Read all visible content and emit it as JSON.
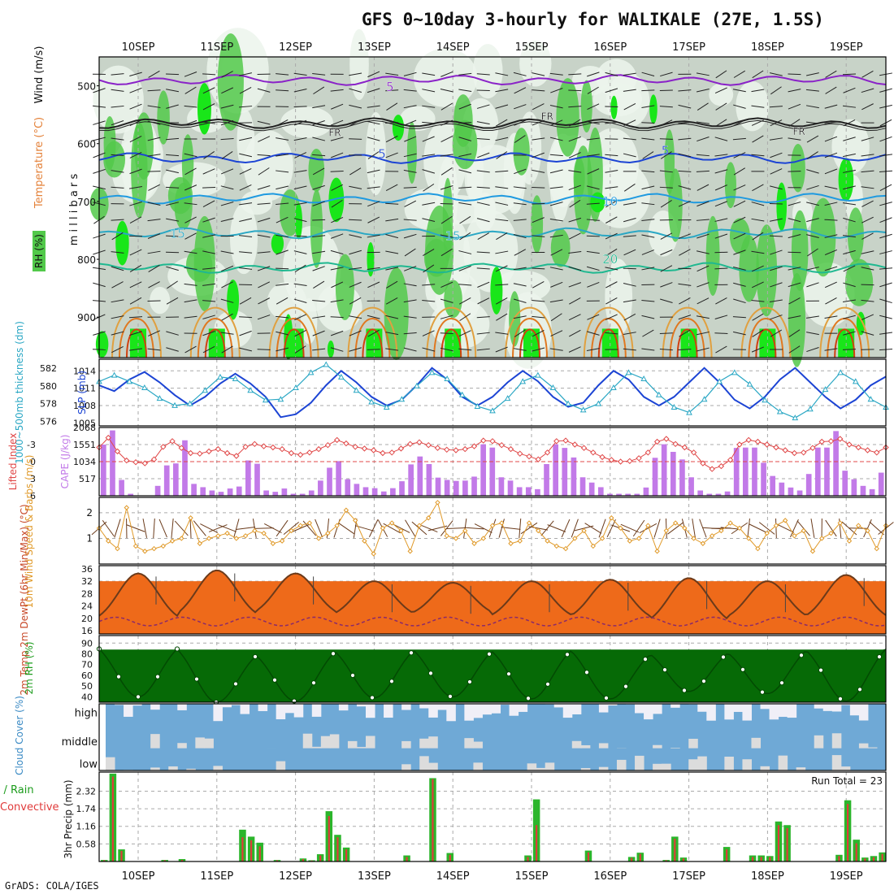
{
  "title": "GFS 0~10day 3-hourly for WALIKALE (27E, 1.5S)",
  "credit": "GrADS: COLA/IGES",
  "colors": {
    "frame": "#000000",
    "grid": "#999999",
    "purple": "#8a22c8",
    "blue": "#1c44d4",
    "cyan": "#2aa7c4",
    "rh_light": "#b9e8b0",
    "rh_mid": "#52c94a",
    "rh_bright": "#19e619",
    "cape": "#c27ae8",
    "li": "#e04848",
    "wind10": "#e09a2a",
    "cloud": "#6fa9d6",
    "precip_total": "#2bb52b",
    "precip_conv": "#e03a3a"
  },
  "chart_data": [
    {
      "type": "line",
      "panel": "upper-air",
      "title": "Wind (m/s) Temperature (°C) RH (%)",
      "ylabel": "millibars",
      "legend": [
        "Wind (m/s)",
        "Temperature (°C)",
        "RH (%)"
      ],
      "axis_label_wind": "Wind (m/s)",
      "axis_label_temp": "Temperature (°C)",
      "axis_label_rh": "RH (%)",
      "ylim": [
        450,
        970
      ],
      "ytick_labels": [
        "500",
        "600",
        "700",
        "800",
        "900"
      ],
      "yticks": [
        500,
        600,
        700,
        800,
        900
      ],
      "x_dates": [
        "10SEP",
        "11SEP",
        "12SEP",
        "13SEP",
        "14SEP",
        "15SEP",
        "16SEP",
        "17SEP",
        "18SEP",
        "19SEP"
      ],
      "contour_labels": [
        {
          "text": "5",
          "day": 3.2,
          "p": 502
        },
        {
          "text": "FR",
          "day": 2.5,
          "p": 580
        },
        {
          "text": "FR",
          "day": 5.2,
          "p": 552
        },
        {
          "text": "FR",
          "day": 8.4,
          "p": 578
        },
        {
          "text": "5",
          "day": 3.1,
          "p": 618
        },
        {
          "text": "5",
          "day": 6.7,
          "p": 612
        },
        {
          "text": "10",
          "day": 6.0,
          "p": 700
        },
        {
          "text": "15",
          "day": 0.5,
          "p": 756
        },
        {
          "text": "15",
          "day": 4.0,
          "p": 760
        },
        {
          "text": "20",
          "day": 6.0,
          "p": 800
        }
      ],
      "series": [
        {
          "name": "-5 °C",
          "level_mb": 490
        },
        {
          "name": "0 °C (FR)",
          "level_mb": 565
        },
        {
          "name": "5 °C",
          "level_mb": 625
        },
        {
          "name": "10 °C",
          "level_mb": 695
        },
        {
          "name": "15 °C",
          "level_mb": 755
        },
        {
          "name": "20 °C",
          "level_mb": 815
        }
      ]
    },
    {
      "type": "line",
      "panel": "thickness-slp",
      "ylabel_left": "1000~500mb thickness (dm)",
      "ylabel_right": "SLP (mb)",
      "left_ticks": [
        "582",
        "580",
        "578",
        "576"
      ],
      "left_range": [
        575.5,
        583
      ],
      "right_ticks": [
        "1014",
        "1011",
        "1008",
        "1005"
      ],
      "right_range": [
        1004.5,
        1016
      ],
      "series": [
        {
          "name": "SLP (mb)",
          "values": [
            1011.5,
            1010.5,
            1012.5,
            1013.8,
            1012.0,
            1009.8,
            1008.0,
            1009.5,
            1011.8,
            1013.5,
            1011.8,
            1009.5,
            1006.0,
            1006.5,
            1008.5,
            1011.5,
            1014.0,
            1012.0,
            1009.5,
            1008.0,
            1009.0,
            1011.5,
            1014.5,
            1012.5,
            1009.5,
            1008.0,
            1009.5,
            1012.0,
            1014.0,
            1012.2,
            1009.5,
            1007.8,
            1008.5,
            1011.5,
            1014.0,
            1012.5,
            1009.5,
            1008.0,
            1009.5,
            1012.0,
            1014.5,
            1012.0,
            1009.0,
            1007.5,
            1009.5,
            1012.5,
            1014.5,
            1012.0,
            1009.5,
            1007.5,
            1009.0,
            1011.5,
            1013.0
          ]
        },
        {
          "name": "1000~500mb thickness (dm)",
          "values": [
            580.5,
            581.2,
            580.5,
            579.8,
            578.6,
            577.8,
            578.0,
            579.5,
            581.0,
            580.8,
            579.5,
            578.4,
            578.5,
            579.8,
            581.5,
            582.4,
            581.0,
            579.5,
            578.2,
            577.6,
            578.5,
            580.0,
            581.5,
            580.8,
            579.0,
            577.7,
            577.2,
            578.6,
            580.5,
            581.2,
            579.8,
            578.0,
            577.3,
            578.0,
            579.8,
            581.5,
            580.8,
            579.0,
            577.6,
            577.0,
            578.5,
            580.5,
            581.5,
            580.2,
            578.4,
            577.1,
            576.4,
            577.4,
            579.6,
            581.5,
            580.5,
            578.5,
            577.6
          ]
        }
      ]
    },
    {
      "type": "bar",
      "panel": "cape-li",
      "ylabel_left": "Lifted Index",
      "ylabel_right": "CAPE (J/kg)",
      "li_ticks": [
        "-3",
        "0",
        "3",
        "6"
      ],
      "li_range": [
        -6,
        6
      ],
      "cape_ticks": [
        "2068",
        "1551",
        "1034",
        "517"
      ],
      "cape_range": [
        0,
        2068
      ],
      "series": [
        {
          "name": "CAPE (J/kg)",
          "values": [
            1550,
            1980,
            480,
            60,
            10,
            0,
            300,
            920,
            980,
            1680,
            360,
            260,
            160,
            120,
            220,
            280,
            1070,
            970,
            160,
            120,
            220,
            60,
            60,
            160,
            460,
            850,
            1050,
            500,
            360,
            260,
            230,
            130,
            230,
            440,
            950,
            1190,
            960,
            550,
            480,
            450,
            460,
            580,
            1560,
            1460,
            560,
            460,
            260,
            260,
            200,
            960,
            1560,
            1450,
            1160,
            560,
            400,
            260,
            60,
            60,
            60,
            60,
            250,
            1150,
            1560,
            1330,
            1100,
            560,
            160,
            60,
            60,
            130,
            1450,
            1460,
            1460,
            1000,
            600,
            400,
            250,
            160,
            660,
            1460,
            1460,
            1960,
            760,
            500,
            300,
            200,
            700
          ]
        },
        {
          "name": "Lifted Index",
          "values": [
            -2.5,
            -4.2,
            -1.8,
            -0.2,
            0.1,
            0.3,
            -0.4,
            -2.6,
            -3.6,
            -2.4,
            -1.5,
            -1.4,
            -1.8,
            -2.2,
            -1.5,
            -1.0,
            -2.6,
            -3.1,
            -2.7,
            -2.5,
            -2.2,
            -1.5,
            -1.2,
            -1.6,
            -2.2,
            -2.9,
            -3.8,
            -3.2,
            -2.6,
            -2.3,
            -2.0,
            -1.5,
            -1.6,
            -2.3,
            -3.1,
            -3.4,
            -2.9,
            -2.4,
            -2.1,
            -2.0,
            -2.2,
            -2.7,
            -3.7,
            -3.6,
            -2.9,
            -2.2,
            -1.4,
            -0.9,
            -0.4,
            -1.6,
            -3.6,
            -3.7,
            -3.0,
            -2.4,
            -1.6,
            -0.8,
            -0.3,
            0.0,
            -0.1,
            -0.6,
            -1.6,
            -3.5,
            -4.0,
            -3.1,
            -2.5,
            -1.6,
            0.3,
            1.3,
            0.8,
            -0.3,
            -3.0,
            -3.8,
            -3.5,
            -3.0,
            -2.5,
            -2.0,
            -1.5,
            -1.6,
            -2.4,
            -3.5,
            -3.6,
            -4.0,
            -3.0,
            -2.5,
            -2.0,
            -1.6,
            -2.5
          ]
        }
      ]
    },
    {
      "type": "line",
      "panel": "wind10m",
      "ylabel": "10m Wind Speed & Barbs (m/s)",
      "yticks": [
        "2",
        "1"
      ],
      "ylim": [
        0,
        2.6
      ],
      "series": [
        {
          "name": "10m Wind Speed (m/s)",
          "values": [
            1.4,
            0.9,
            0.6,
            2.2,
            0.7,
            0.5,
            0.6,
            0.7,
            0.9,
            1.0,
            1.8,
            0.8,
            1.0,
            1.1,
            1.2,
            1.0,
            1.1,
            1.3,
            1.2,
            0.8,
            0.9,
            1.3,
            1.5,
            1.6,
            1.0,
            1.2,
            1.5,
            2.1,
            1.7,
            0.9,
            0.4,
            1.4,
            1.6,
            1.3,
            0.5,
            1.5,
            1.8,
            2.4,
            1.1,
            1.0,
            1.3,
            0.8,
            1.0,
            1.5,
            1.6,
            0.8,
            0.9,
            1.6,
            1.3,
            0.9,
            0.7,
            0.6,
            1.0,
            1.3,
            0.7,
            1.0,
            1.8,
            1.4,
            0.9,
            1.0,
            1.5,
            0.5,
            1.3,
            1.6,
            1.4,
            1.0,
            0.8,
            1.1,
            1.3,
            1.6,
            1.4,
            1.0,
            0.6,
            1.2,
            1.5,
            1.7,
            1.1,
            1.3,
            0.5,
            1.0,
            1.2,
            1.6,
            0.9,
            1.5,
            1.3,
            0.6,
            1.5
          ]
        }
      ]
    },
    {
      "type": "area",
      "panel": "temp2m",
      "ylabel": "2m Temp 2m DewPt (6hr Min/Max) (°C)",
      "yticks": [
        "36",
        "32",
        "28",
        "24",
        "20",
        "16"
      ],
      "ylim": [
        15,
        37
      ],
      "series": [
        {
          "name": "2m Temp",
          "daily_max": [
            34.5,
            35.5,
            34.5,
            32.0,
            31.5,
            32.0,
            32.5,
            33.0,
            32.0,
            34.0
          ]
        },
        {
          "name": "2m DewPt",
          "values_mean": 19.0
        },
        {
          "name": "2m Temp min",
          "daily_min": [
            18.5,
            19.5,
            20.5,
            20.0,
            20.5,
            19.5,
            19.0,
            17.5,
            19.0,
            19.0
          ]
        }
      ]
    },
    {
      "type": "area",
      "panel": "rh2m",
      "ylabel": "2m RH (%)",
      "yticks": [
        "90",
        "80",
        "70",
        "60",
        "50",
        "40"
      ],
      "ylim": [
        35,
        97
      ],
      "series": [
        {
          "name": "2m RH",
          "daily_max": [
            95,
            88,
            92,
            93,
            92,
            93,
            88,
            89,
            93,
            95
          ],
          "daily_min": [
            40,
            35,
            36,
            39,
            40,
            38,
            38,
            45,
            43,
            36
          ]
        }
      ]
    },
    {
      "type": "heatmap",
      "panel": "cloud-cover",
      "ylabel": "Cloud Cover (%)",
      "row_labels": [
        "high",
        "middle",
        "low"
      ]
    },
    {
      "type": "bar",
      "panel": "precip",
      "ylabel": "3hr Precip (mm)",
      "left_label": "Total / Rain",
      "left_label2": "Convective",
      "run_total": "Run Total = 23",
      "yticks": [
        "2.32",
        "1.74",
        "1.16",
        "0.58"
      ],
      "ylim": [
        0,
        2.95
      ],
      "series": [
        {
          "name": "Total / Rain",
          "values": [
            0.05,
            2.9,
            0.4,
            0,
            0,
            0,
            0,
            0.05,
            0,
            0.08,
            0,
            0,
            0,
            0,
            0,
            0,
            1.05,
            0.82,
            0.62,
            0,
            0.05,
            0,
            0,
            0.1,
            0.04,
            0.24,
            1.66,
            0.88,
            0.46,
            0,
            0,
            0,
            0,
            0,
            0,
            0.2,
            0,
            0,
            2.75,
            0,
            0.28,
            0,
            0,
            0,
            0,
            0,
            0,
            0,
            0,
            0.2,
            2.05,
            0,
            0,
            0,
            0,
            0,
            0.36,
            0,
            0,
            0,
            0,
            0.15,
            0.29,
            0,
            0,
            0.05,
            0.82,
            0.13,
            0,
            0,
            0,
            0,
            0.48,
            0,
            0,
            0.2,
            0.2,
            0.18,
            1.32,
            1.2,
            0,
            0,
            0,
            0,
            0,
            0.22,
            2.02,
            0.72,
            0.13,
            0.18,
            0.3
          ]
        },
        {
          "name": "Convective",
          "values": [
            0.04,
            2.8,
            0.35,
            0,
            0,
            0,
            0,
            0.04,
            0,
            0.05,
            0,
            0,
            0,
            0,
            0,
            0,
            0.8,
            0.7,
            0.5,
            0,
            0.04,
            0,
            0,
            0.08,
            0.03,
            0.2,
            1.5,
            0.8,
            0.4,
            0,
            0,
            0,
            0,
            0,
            0,
            0.15,
            0,
            0,
            2.72,
            0,
            0.22,
            0,
            0,
            0,
            0,
            0,
            0,
            0,
            0,
            0.15,
            1.2,
            0,
            0,
            0,
            0,
            0,
            0.3,
            0,
            0,
            0,
            0,
            0.12,
            0.25,
            0,
            0,
            0.04,
            0.75,
            0.1,
            0,
            0,
            0,
            0,
            0.4,
            0,
            0,
            0.15,
            0.15,
            0.15,
            1.2,
            1.1,
            0,
            0,
            0,
            0,
            0,
            0.18,
            1.9,
            0.6,
            0.1,
            0.14,
            0.25
          ]
        }
      ]
    }
  ]
}
